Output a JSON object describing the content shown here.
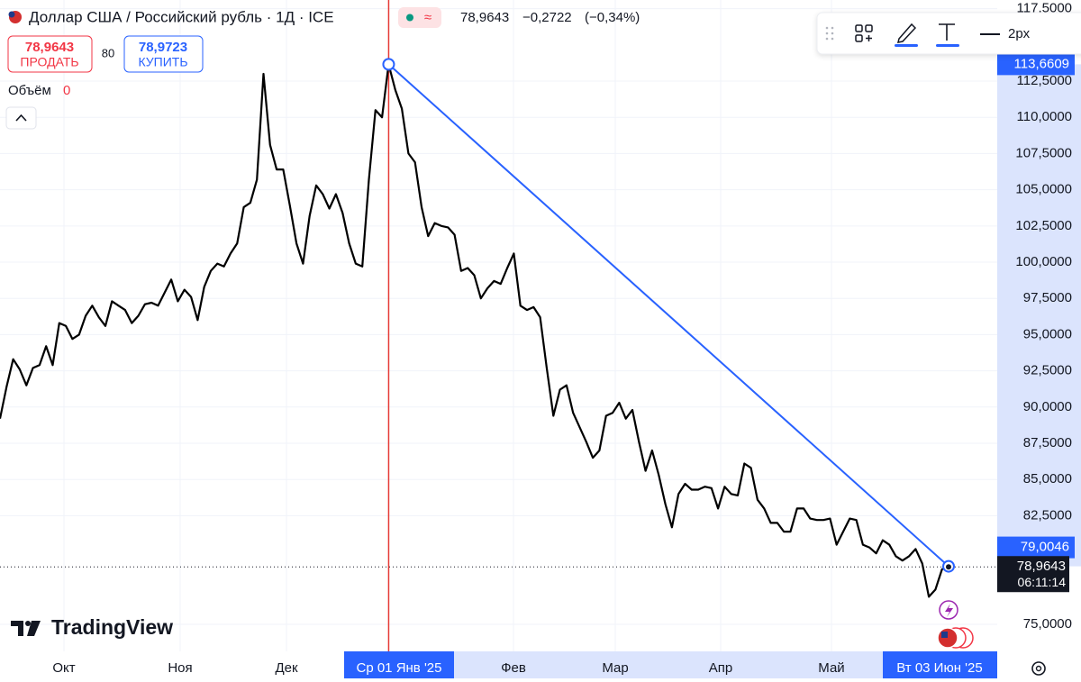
{
  "chart_data": {
    "type": "line",
    "title": "Доллар США / Российский рубль · 1Д · ICE",
    "quote": {
      "price": "78,9643",
      "change": "−0,2722",
      "change_pct": "(−0,34%)"
    },
    "sell": {
      "price": "78,9643",
      "label": "ПРОДАТЬ"
    },
    "spread": "80",
    "buy": {
      "price": "78,9723",
      "label": "КУПИТЬ"
    },
    "volume": {
      "label": "Объём",
      "value": "0"
    },
    "toolbar": {
      "line_width": "2px"
    },
    "logo": "TradingView",
    "x_axis_labels": [
      "Окт",
      "Ноя",
      "Дек",
      "Фев",
      "Мар",
      "Апр",
      "Май"
    ],
    "crosshair_date": "Ср 01 Янв '25",
    "last_date": "Вт 03 Июн '25",
    "series": [
      {
        "color": "#000000",
        "values": [
          89.2,
          91.4,
          93.3,
          92.6,
          91.5,
          92.7,
          92.9,
          94.2,
          92.9,
          95.8,
          95.6,
          94.7,
          95.0,
          96.3,
          97.0,
          96.2,
          95.6,
          97.3,
          97.0,
          96.7,
          95.8,
          96.3,
          97.1,
          97.2,
          97.0,
          97.9,
          98.8,
          97.3,
          98.1,
          97.6,
          96.0,
          98.3,
          99.4,
          99.9,
          99.7,
          100.6,
          101.3,
          103.8,
          104.1,
          105.7,
          113.0,
          108.1,
          106.4,
          106.4,
          103.9,
          101.3,
          99.9,
          103.2,
          105.3,
          104.7,
          103.7,
          104.7,
          103.4,
          101.3,
          99.9,
          99.7,
          105.7,
          110.5,
          110.0,
          113.66,
          111.9,
          110.6,
          107.5,
          106.9,
          103.8,
          101.8,
          102.7,
          102.5,
          102.4,
          101.9,
          99.4,
          99.6,
          99.1,
          97.5,
          98.2,
          98.7,
          98.5,
          99.6,
          100.6,
          97.0,
          96.7,
          96.9,
          96.2,
          92.7,
          89.4,
          91.2,
          91.5,
          89.6,
          88.6,
          87.6,
          86.5,
          87.0,
          89.4,
          89.6,
          90.3,
          89.2,
          89.8,
          87.6,
          85.6,
          87.0,
          85.3,
          83.3,
          81.7,
          84.0,
          84.7,
          84.3,
          84.3,
          84.5,
          84.4,
          83.0,
          84.5,
          84.0,
          83.9,
          86.1,
          85.8,
          83.6,
          83.0,
          82.0,
          82.0,
          81.4,
          81.4,
          83.0,
          83.0,
          82.3,
          82.2,
          82.2,
          82.3,
          80.5,
          81.4,
          82.3,
          82.2,
          80.5,
          80.3,
          79.9,
          80.8,
          80.5,
          79.7,
          79.4,
          79.7,
          80.2,
          79.2,
          76.9,
          77.4,
          78.8,
          78.9643
        ]
      }
    ],
    "trend_line": {
      "color": "#2962ff",
      "values": [
        113.6609,
        79.0046
      ],
      "value_labels": [
        "113,6609",
        "79,0046"
      ]
    },
    "crosshair_color": "#e53935",
    "last_price": {
      "value": 78.9643,
      "label": "78,9643",
      "countdown": "06:11:14"
    },
    "ylim": [
      73.32,
      118.1
    ],
    "yticks": [
      {
        "value": 117.5,
        "label": "117,5000"
      },
      {
        "value": 112.5,
        "label": "112,5000"
      },
      {
        "value": 110,
        "label": "110,0000"
      },
      {
        "value": 107.5,
        "label": "107,5000"
      },
      {
        "value": 105,
        "label": "105,0000"
      },
      {
        "value": 102.5,
        "label": "102,5000"
      },
      {
        "value": 100,
        "label": "100,0000"
      },
      {
        "value": 97.5,
        "label": "97,5000"
      },
      {
        "value": 95,
        "label": "95,0000"
      },
      {
        "value": 92.5,
        "label": "92,5000"
      },
      {
        "value": 90,
        "label": "90,0000"
      },
      {
        "value": 87.5,
        "label": "87,5000"
      },
      {
        "value": 85,
        "label": "85,0000"
      },
      {
        "value": 82.5,
        "label": "82,5000"
      },
      {
        "value": 75,
        "label": "75,0000"
      }
    ],
    "grid": true
  }
}
